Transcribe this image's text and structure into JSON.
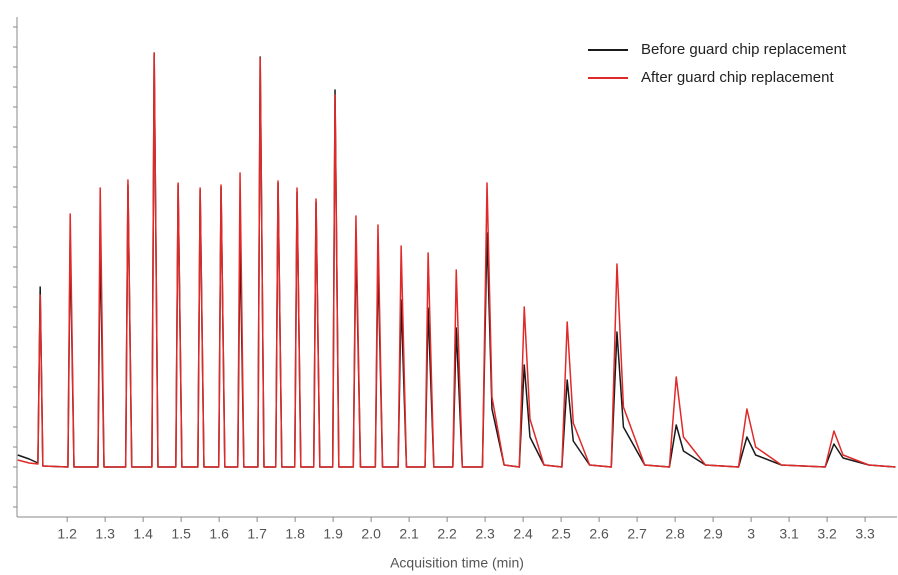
{
  "chart_data": {
    "type": "line",
    "x_label": "Acquisition time (min)",
    "x": [
      1.07,
      1.1,
      1.123,
      1.129,
      1.136,
      1.202,
      1.208,
      1.218,
      1.281,
      1.287,
      1.297,
      1.354,
      1.36,
      1.37,
      1.423,
      1.429,
      1.439,
      1.486,
      1.492,
      1.502,
      1.544,
      1.55,
      1.56,
      1.599,
      1.605,
      1.615,
      1.649,
      1.655,
      1.665,
      1.702,
      1.708,
      1.718,
      1.749,
      1.755,
      1.765,
      1.799,
      1.805,
      1.815,
      1.849,
      1.855,
      1.865,
      1.899,
      1.905,
      1.915,
      1.953,
      1.96,
      1.972,
      2.011,
      2.018,
      2.03,
      2.071,
      2.079,
      2.093,
      2.142,
      2.15,
      2.165,
      2.215,
      2.224,
      2.24,
      2.293,
      2.305,
      2.318,
      2.35,
      2.39,
      2.403,
      2.418,
      2.455,
      2.502,
      2.516,
      2.532,
      2.575,
      2.632,
      2.647,
      2.664,
      2.72,
      2.785,
      2.803,
      2.822,
      2.88,
      2.967,
      2.989,
      3.012,
      3.08,
      3.195,
      3.218,
      3.242,
      3.31,
      3.38
    ],
    "series": [
      {
        "name": "Before guard chip replacement",
        "color": "#1a1a1a",
        "values": [
          0.6,
          0.4,
          0.2,
          9.0,
          0.05,
          0,
          11.35,
          0,
          0,
          11.35,
          0,
          0,
          14.1,
          0,
          0,
          20.7,
          0,
          0,
          14.1,
          0,
          0,
          13.85,
          0,
          0,
          14.0,
          0,
          0,
          11.6,
          0,
          0,
          20.5,
          0,
          0,
          14.2,
          0,
          0,
          13.75,
          0,
          0,
          13.25,
          0,
          0,
          18.85,
          0,
          0,
          11.35,
          0,
          0,
          10.35,
          0,
          0,
          8.35,
          0,
          0,
          7.95,
          0,
          0,
          6.95,
          0,
          0,
          11.7,
          2.9,
          0.1,
          0,
          5.1,
          1.5,
          0.1,
          0,
          4.35,
          1.3,
          0.1,
          0,
          6.75,
          2.0,
          0.1,
          0,
          2.1,
          0.8,
          0.1,
          0,
          1.5,
          0.6,
          0.1,
          0,
          1.15,
          0.45,
          0.1,
          0
        ]
      },
      {
        "name": "After guard chip replacement",
        "color": "#e02a2a",
        "values": [
          0.35,
          0.2,
          0.15,
          8.6,
          0.05,
          0,
          12.65,
          0,
          0,
          13.95,
          0,
          0,
          14.35,
          0,
          0,
          20.7,
          0,
          0,
          14.2,
          0,
          0,
          13.95,
          0,
          0,
          14.1,
          0,
          0,
          14.7,
          0,
          0,
          20.45,
          0,
          0,
          14.3,
          0,
          0,
          13.95,
          0,
          0,
          13.4,
          0,
          0,
          18.6,
          0,
          0,
          12.55,
          0,
          0,
          12.1,
          0,
          0,
          11.05,
          0,
          0,
          10.7,
          0,
          0,
          9.85,
          0,
          0,
          14.2,
          3.5,
          0.1,
          0,
          8.0,
          2.4,
          0.1,
          0,
          7.25,
          2.2,
          0.1,
          0,
          10.15,
          3.0,
          0.1,
          0,
          4.5,
          1.5,
          0.1,
          0,
          2.9,
          1.0,
          0.1,
          0,
          1.8,
          0.6,
          0.1,
          0
        ]
      }
    ],
    "xlim": [
      1.068,
      3.384
    ],
    "xticks": [
      1.2,
      1.3,
      1.4,
      1.5,
      1.6,
      1.7,
      1.8,
      1.9,
      {
        "value": 2,
        "label": "2.0"
      },
      2.1,
      2.2,
      2.3,
      2.4,
      2.5,
      2.6,
      2.7,
      2.8,
      2.9,
      3,
      3.1,
      3.2,
      3.3
    ],
    "ylim": [
      -2.5,
      22.5
    ],
    "yticks": [
      -2,
      -1,
      0,
      1,
      2,
      3,
      4,
      5,
      6,
      7,
      8,
      9,
      10,
      11,
      12,
      13,
      14,
      15,
      16,
      17,
      18,
      19,
      20,
      21,
      22
    ],
    "legend": "top-right"
  }
}
